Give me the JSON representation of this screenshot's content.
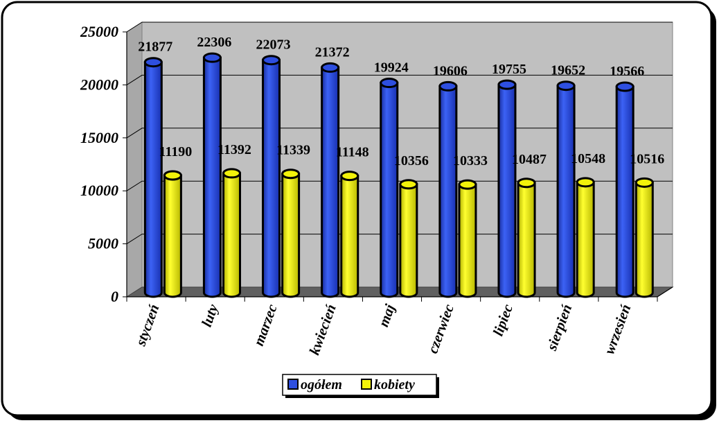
{
  "chart_data": {
    "type": "bar",
    "categories": [
      "styczeń",
      "luty",
      "marzec",
      "kwiecień",
      "maj",
      "czerwiec",
      "lipiec",
      "sierpień",
      "wrzesień"
    ],
    "series": [
      {
        "name": "ogółem",
        "values": [
          21877,
          22306,
          22073,
          21372,
          19924,
          19606,
          19755,
          19652,
          19566
        ],
        "color": "#2E4FE0"
      },
      {
        "name": "kobiety",
        "values": [
          11190,
          11392,
          11339,
          11148,
          10356,
          10333,
          10487,
          10548,
          10516
        ],
        "color": "#F2F20A"
      }
    ],
    "y_ticks": [
      "0",
      "5000",
      "10000",
      "15000",
      "20000",
      "25000"
    ],
    "ylim": [
      0,
      25000
    ],
    "grid": true,
    "legend_position": "bottom",
    "plot_background": "#C0C0C0",
    "three_d": true
  }
}
